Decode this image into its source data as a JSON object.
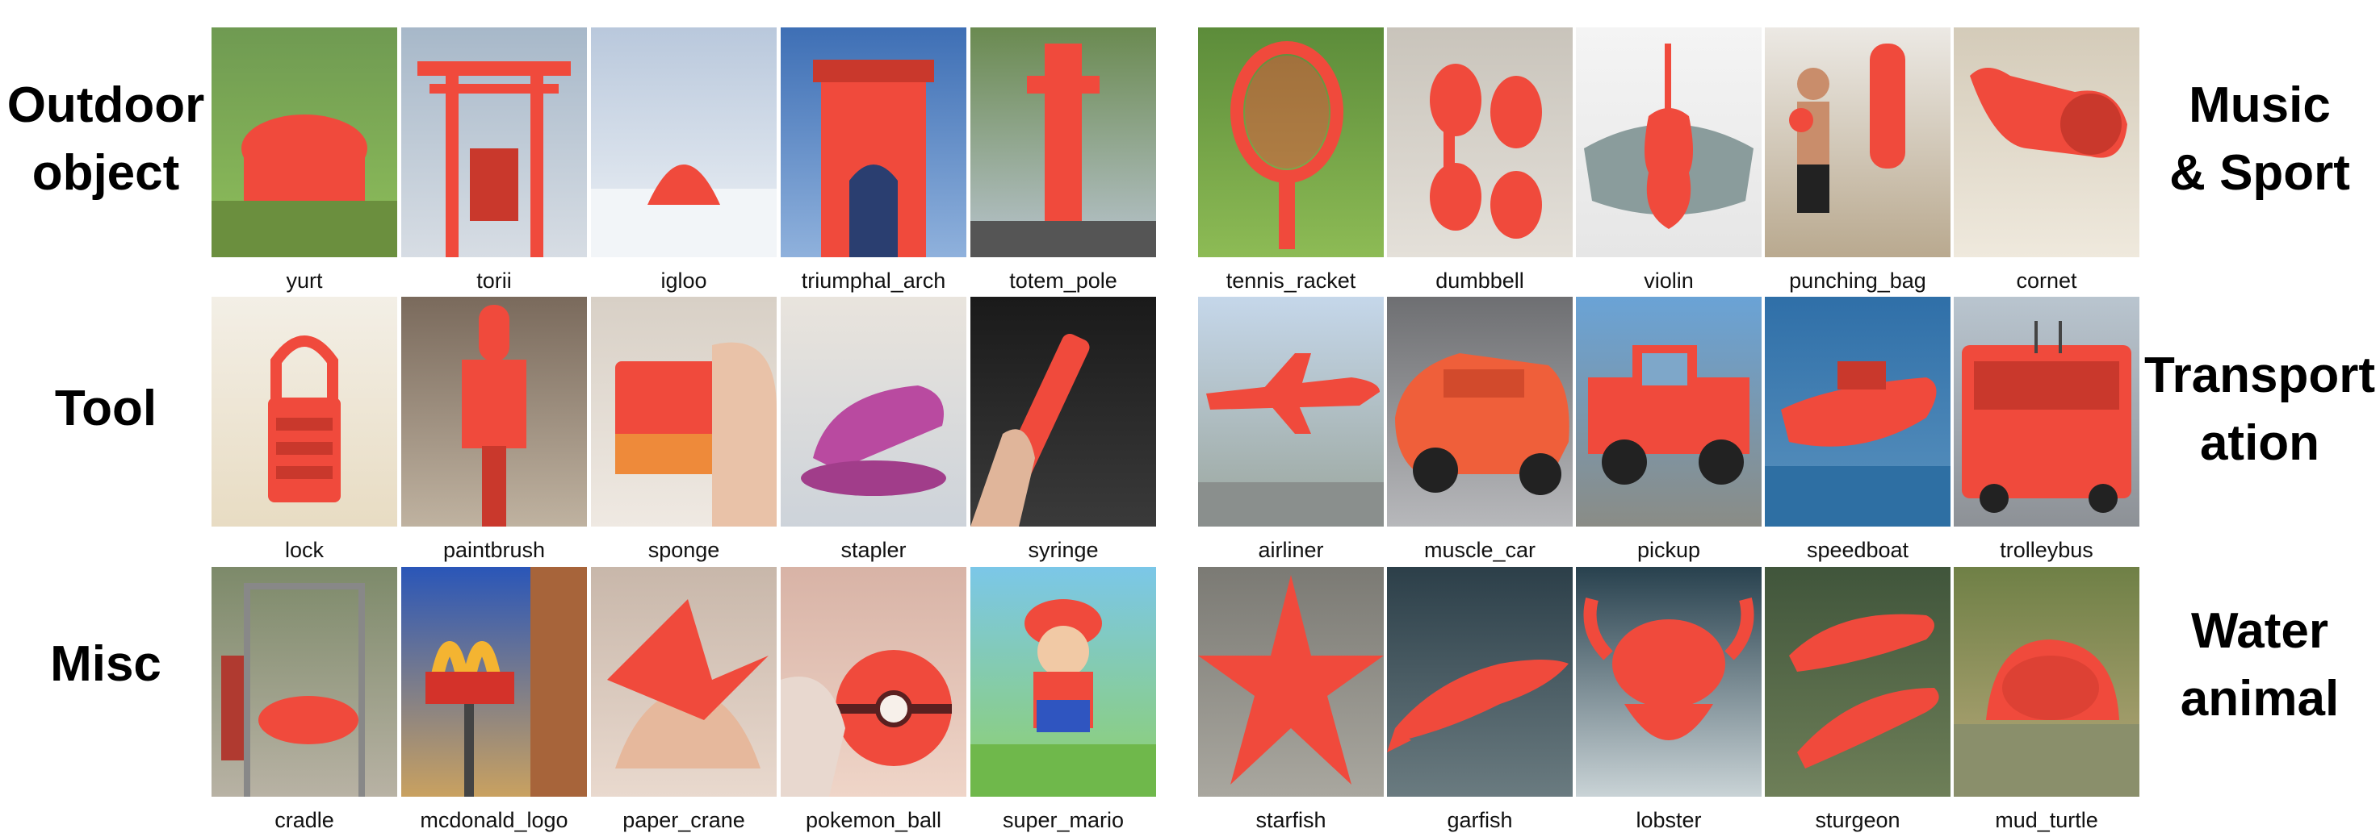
{
  "categories": [
    {
      "label_line1": "Outdoor",
      "label_line2": "object"
    },
    {
      "label_line1": "Tool",
      "label_line2": ""
    },
    {
      "label_line1": "Misc",
      "label_line2": ""
    },
    {
      "label_line1": "Music",
      "label_line2": "& Sport"
    },
    {
      "label_line1": "Transport",
      "label_line2": "ation"
    },
    {
      "label_line1": "Water",
      "label_line2": "animal"
    }
  ],
  "captions": {
    "outdoor": [
      "yurt",
      "torii",
      "igloo",
      "triumphal_arch",
      "totem_pole"
    ],
    "tool": [
      "lock",
      "paintbrush",
      "sponge",
      "stapler",
      "syringe"
    ],
    "misc": [
      "cradle",
      "mcdonald_logo",
      "paper_crane",
      "pokemon_ball",
      "super_mario"
    ],
    "music_sport": [
      "tennis_racket",
      "dumbbell",
      "violin",
      "punching_bag",
      "cornet"
    ],
    "transportation": [
      "airliner",
      "muscle_car",
      "pickup",
      "speedboat",
      "trolleybus"
    ],
    "water_animal": [
      "starfish",
      "garfish",
      "lobster",
      "sturgeon",
      "mud_turtle"
    ]
  },
  "colors": {
    "highlight": "#f04a3c",
    "background": "#ffffff",
    "text": "#000000"
  }
}
